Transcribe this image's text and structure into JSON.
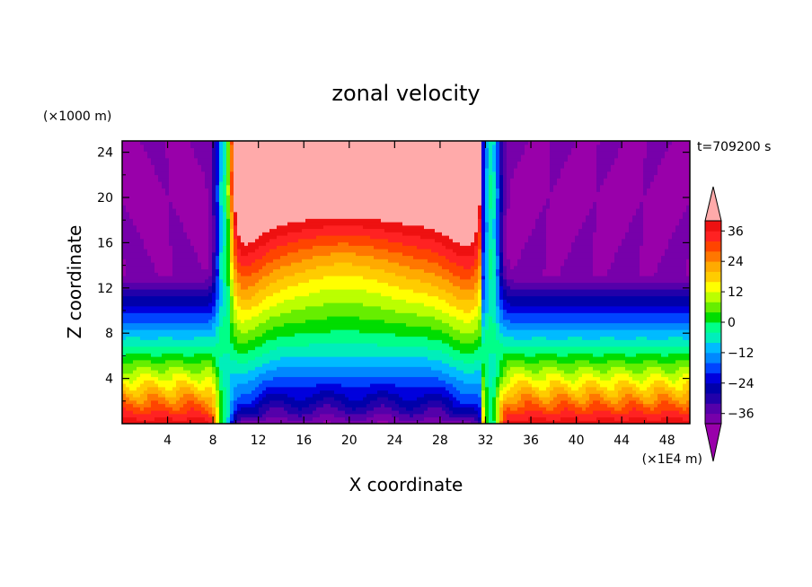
{
  "chart_data": {
    "type": "heatmap",
    "subtype": "filled-contour",
    "title": "zonal velocity",
    "xlabel": "X coordinate",
    "ylabel": "Z coordinate",
    "x_unit_label": "(×1E4 m)",
    "y_unit_label": "(×1000 m)",
    "time_label": "t=709200 s",
    "xlim": [
      0,
      50
    ],
    "ylim": [
      0,
      25
    ],
    "x_ticks": [
      4,
      8,
      12,
      16,
      20,
      24,
      28,
      32,
      36,
      40,
      44,
      48
    ],
    "x_tick_labels": [
      "4",
      "8",
      "12",
      "16",
      "20",
      "24",
      "28",
      "32",
      "36",
      "40",
      "44",
      "48"
    ],
    "y_ticks": [
      4,
      8,
      12,
      16,
      20,
      24
    ],
    "y_tick_labels": [
      "4",
      "8",
      "12",
      "16",
      "20",
      "24"
    ],
    "colorbar": {
      "levels": [
        -40,
        -36,
        -32,
        -28,
        -24,
        -20,
        -16,
        -12,
        -8,
        -4,
        0,
        4,
        8,
        12,
        16,
        20,
        24,
        28,
        32,
        36,
        40
      ],
      "tick_values": [
        -36,
        -24,
        -12,
        0,
        12,
        24,
        36
      ],
      "tick_labels": [
        "−36",
        "−24",
        "−12",
        "0",
        "12",
        "24",
        "36"
      ],
      "extend": "both",
      "under_color": "#9900aa",
      "over_color": "#ffaaaa",
      "colors": [
        "#7700aa",
        "#5500aa",
        "#2200aa",
        "#0000aa",
        "#0000dd",
        "#0044ff",
        "#0088ff",
        "#00bbff",
        "#00eebb",
        "#00ff88",
        "#00dd00",
        "#66ee00",
        "#bbff00",
        "#ffff00",
        "#ffcc00",
        "#ffaa00",
        "#ff7700",
        "#ff4400",
        "#ff2222",
        "#ee1111"
      ]
    },
    "features": [
      {
        "description": "easterly jet columns",
        "x_center": [
          9,
          32
        ],
        "value_range": [
          -40,
          40
        ]
      },
      {
        "description": "westerly maximum aloft",
        "x_range": [
          10,
          30
        ],
        "z_range": [
          14,
          25
        ],
        "value": 40
      },
      {
        "description": "easterly flow upper flanks",
        "x_range": [
          0,
          8
        ],
        "z_range": [
          12,
          25
        ],
        "value": -36
      },
      {
        "description": "easterly flow upper flanks",
        "x_range": [
          34,
          50
        ],
        "z_range": [
          12,
          25
        ],
        "value": -36
      },
      {
        "description": "near-surface easterlies",
        "x_range": [
          10,
          32
        ],
        "z_range": [
          0,
          2
        ],
        "value": -36
      }
    ]
  }
}
